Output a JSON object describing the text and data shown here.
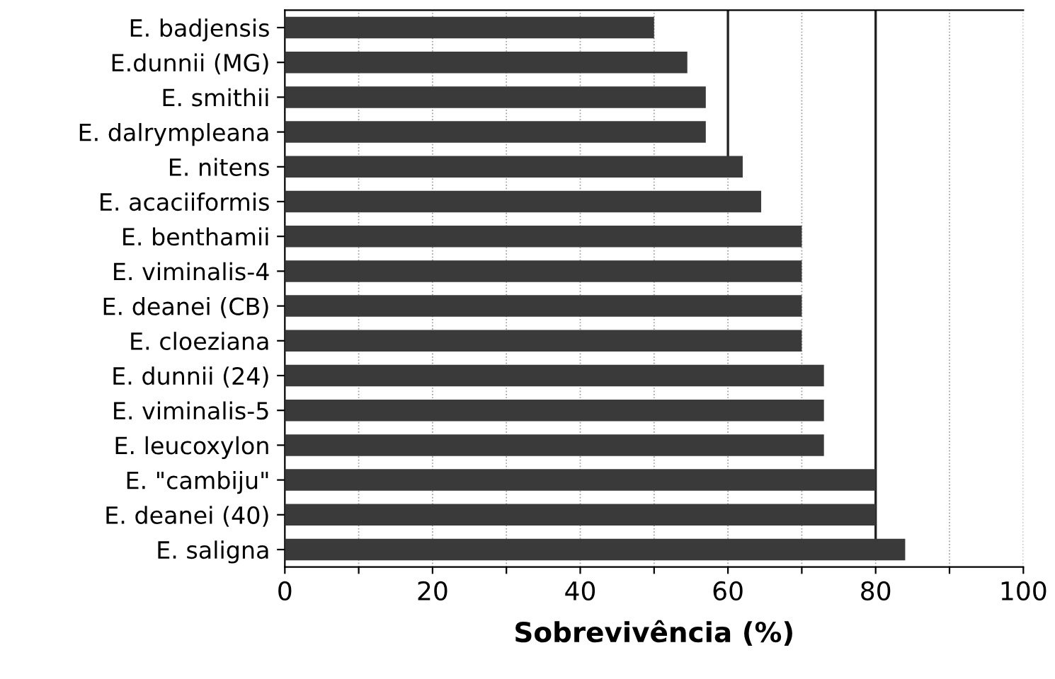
{
  "chart_data": {
    "type": "bar",
    "orientation": "horizontal",
    "xlabel": "Sobrevivência (%)",
    "categories": [
      "E. badjensis",
      "E.dunnii (MG)",
      "E. smithii",
      "E. dalrympleana",
      "E. nitens",
      "E. acaciiformis",
      "E. benthamii",
      "E. viminalis-4",
      "E. deanei (CB)",
      "E. cloeziana",
      "E. dunnii (24)",
      "E. viminalis-5",
      "E. leucoxylon",
      "E. \"cambiju\"",
      "E. deanei (40)",
      "E. saligna"
    ],
    "values": [
      50,
      54.5,
      57,
      57,
      62,
      64.5,
      70,
      70,
      70,
      70,
      73,
      73,
      73,
      80,
      80,
      84
    ],
    "color": "#3a3a3a",
    "xlim": [
      0,
      100
    ],
    "xticks": [
      0,
      {
        "value": 10,
        "label": null
      },
      20,
      {
        "value": 30,
        "label": null
      },
      40,
      {
        "value": 50,
        "label": null
      },
      60,
      {
        "value": 70,
        "label": null
      },
      80,
      {
        "value": 90,
        "label": null
      },
      100
    ],
    "ref_lines": [
      {
        "axis": "x",
        "value": 60,
        "color": "#222222"
      },
      {
        "axis": "x",
        "value": 80,
        "color": "#222222"
      }
    ],
    "grid": "x"
  }
}
